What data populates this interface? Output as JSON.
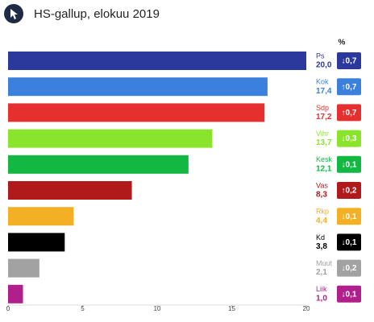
{
  "chart_data": {
    "type": "bar",
    "orientation": "horizontal",
    "title": "HS-gallup, elokuu 2019",
    "categories": [
      "Ps",
      "Kok",
      "Sdp",
      "Vihr",
      "Kesk",
      "Vas",
      "Rkp",
      "Kd",
      "Muut",
      "Liik"
    ],
    "values": [
      20.0,
      17.4,
      17.2,
      13.7,
      12.1,
      8.3,
      4.4,
      3.8,
      2.1,
      1.0
    ],
    "value_labels": [
      "20,0",
      "17,4",
      "17,2",
      "13,7",
      "12,1",
      "8,3",
      "4,4",
      "3,8",
      "2,1",
      "1,0"
    ],
    "colors": [
      "#2b399c",
      "#3b80dc",
      "#e6302f",
      "#8ae42b",
      "#13b843",
      "#b01a1a",
      "#f4b024",
      "#000000",
      "#a2a2a2",
      "#b01f8c"
    ],
    "change_header": "%",
    "changes": {
      "values": [
        -0.7,
        0.7,
        0.7,
        -0.3,
        -0.1,
        0.2,
        -0.1,
        -0.1,
        -0.2,
        -0.1
      ],
      "value_labels": [
        "↓0,7",
        "↑0,7",
        "↑0,7",
        "↓0,3",
        "↓0,1",
        "↑0,2",
        "↓0,1",
        "↓0,1",
        "↓0,2",
        "↓0,1"
      ]
    },
    "xlim": [
      0,
      20
    ],
    "xticks": [
      0,
      5,
      10,
      15,
      20
    ]
  }
}
